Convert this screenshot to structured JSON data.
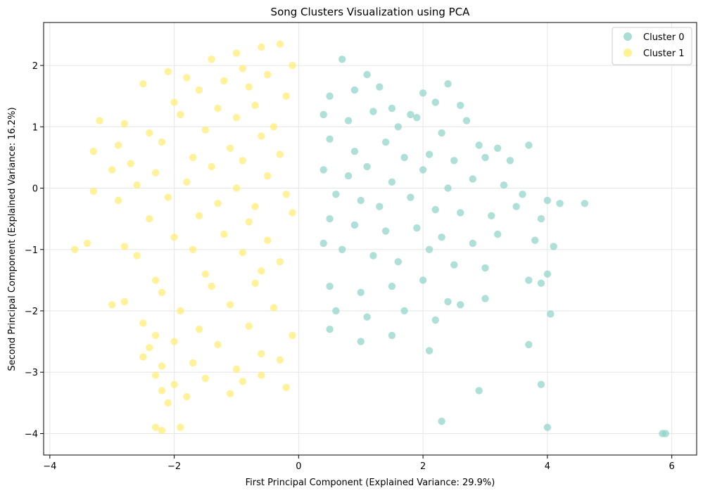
{
  "chart_data": {
    "type": "scatter",
    "title": "Song Clusters Visualization using PCA",
    "xlabel": "First Principal Component (Explained Variance: 29.9%)",
    "ylabel": "Second Principal Component (Explained Variance: 16.2%)",
    "xlim": [
      -4.1,
      6.4
    ],
    "ylim": [
      -4.35,
      2.7
    ],
    "xticks": [
      -4,
      -2,
      0,
      2,
      4,
      6
    ],
    "yticks": [
      -4,
      -3,
      -2,
      -1,
      0,
      1,
      2
    ],
    "grid": true,
    "legend_position": "top-right",
    "series": [
      {
        "name": "Cluster 0",
        "color": "#8dd3c7",
        "x": [
          0.7,
          1.1,
          1.3,
          2.2,
          2.4,
          2.6,
          0.5,
          0.9,
          1.5,
          1.8,
          2.0,
          2.7,
          0.4,
          0.8,
          1.2,
          1.6,
          1.9,
          2.3,
          2.9,
          3.2,
          0.5,
          0.9,
          1.4,
          1.7,
          2.1,
          2.5,
          3.0,
          3.4,
          3.7,
          0.4,
          0.8,
          1.1,
          1.5,
          2.0,
          2.4,
          2.8,
          3.3,
          3.6,
          4.0,
          4.2,
          4.6,
          0.6,
          1.0,
          1.3,
          1.8,
          2.2,
          2.6,
          3.1,
          3.5,
          3.9,
          0.5,
          0.9,
          1.4,
          1.9,
          2.3,
          2.8,
          3.2,
          3.8,
          4.1,
          0.4,
          0.7,
          1.2,
          1.6,
          2.1,
          2.5,
          3.0,
          3.7,
          4.0,
          0.5,
          1.0,
          1.5,
          2.0,
          2.4,
          3.0,
          3.9,
          0.6,
          1.1,
          1.7,
          2.2,
          2.6,
          3.7,
          4.05,
          0.5,
          1.0,
          1.5,
          2.1,
          2.9,
          3.9,
          2.3,
          4.0,
          5.9,
          5.85
        ],
        "y": [
          2.1,
          1.85,
          1.65,
          1.4,
          1.7,
          1.35,
          1.5,
          1.6,
          1.3,
          1.2,
          1.55,
          1.1,
          1.2,
          1.1,
          1.25,
          1.0,
          1.15,
          0.9,
          0.7,
          0.65,
          0.8,
          0.6,
          0.75,
          0.5,
          0.55,
          0.45,
          0.5,
          0.45,
          0.7,
          0.3,
          0.2,
          0.35,
          0.1,
          0.3,
          0.0,
          0.15,
          0.05,
          -0.1,
          -0.2,
          -0.25,
          -0.25,
          -0.1,
          -0.2,
          -0.3,
          -0.15,
          -0.35,
          -0.4,
          -0.45,
          -0.3,
          -0.5,
          -0.5,
          -0.6,
          -0.7,
          -0.65,
          -0.8,
          -0.9,
          -0.75,
          -0.85,
          -0.95,
          -0.9,
          -1.0,
          -1.1,
          -1.2,
          -1.0,
          -1.25,
          -1.3,
          -1.5,
          -1.4,
          -1.6,
          -1.7,
          -1.6,
          -1.5,
          -1.85,
          -1.8,
          -1.55,
          -2.0,
          -2.1,
          -2.0,
          -2.15,
          -1.9,
          -2.55,
          -2.05,
          -2.3,
          -2.5,
          -2.4,
          -2.65,
          -3.3,
          -3.2,
          -3.8,
          -3.9,
          -4.0,
          -4.0
        ]
      },
      {
        "name": "Cluster 1",
        "color": "#ffed6f",
        "x": [
          -0.3,
          -0.6,
          -1.0,
          -1.4,
          -0.1,
          -0.9,
          -2.1,
          -1.8,
          -0.5,
          -1.2,
          -2.5,
          -1.6,
          -0.8,
          -0.2,
          -2.0,
          -1.3,
          -0.7,
          -3.2,
          -2.8,
          -1.9,
          -1.0,
          -0.4,
          -2.4,
          -1.5,
          -0.6,
          -3.3,
          -2.9,
          -2.2,
          -1.1,
          -0.3,
          -2.7,
          -1.7,
          -0.9,
          -3.0,
          -2.3,
          -1.4,
          -0.5,
          -3.3,
          -2.6,
          -1.8,
          -1.0,
          -0.2,
          -2.9,
          -2.1,
          -1.3,
          -0.7,
          -3.6,
          -3.4,
          -2.4,
          -1.6,
          -0.8,
          -0.1,
          -2.8,
          -2.0,
          -1.2,
          -0.5,
          -2.6,
          -1.7,
          -0.9,
          -0.3,
          -3.0,
          -2.3,
          -1.5,
          -0.6,
          -2.8,
          -2.2,
          -1.4,
          -0.7,
          -2.5,
          -1.9,
          -1.1,
          -0.4,
          -2.3,
          -1.6,
          -0.8,
          -0.1,
          -2.4,
          -2.0,
          -1.3,
          -0.6,
          -2.5,
          -2.2,
          -1.7,
          -1.0,
          -0.3,
          -2.3,
          -2.0,
          -1.5,
          -0.9,
          -2.2,
          -2.1,
          -1.8,
          -1.1,
          -2.3,
          -2.2,
          -1.9,
          -0.6,
          -0.2
        ],
        "y": [
          2.35,
          2.3,
          2.2,
          2.1,
          2.0,
          1.95,
          1.9,
          1.8,
          1.85,
          1.75,
          1.7,
          1.6,
          1.65,
          1.5,
          1.4,
          1.3,
          1.35,
          1.1,
          1.05,
          1.2,
          1.15,
          1.0,
          0.9,
          0.95,
          0.85,
          0.6,
          0.7,
          0.75,
          0.65,
          0.55,
          0.4,
          0.5,
          0.45,
          0.3,
          0.25,
          0.35,
          0.2,
          -0.05,
          0.05,
          0.1,
          0.0,
          -0.1,
          -0.2,
          -0.15,
          -0.25,
          -0.3,
          -1.0,
          -0.9,
          -0.5,
          -0.45,
          -0.55,
          -0.4,
          -0.95,
          -0.8,
          -0.75,
          -0.85,
          -1.1,
          -1.0,
          -1.05,
          -1.2,
          -1.9,
          -1.5,
          -1.4,
          -1.35,
          -1.85,
          -1.7,
          -1.6,
          -1.55,
          -2.2,
          -2.0,
          -1.9,
          -1.95,
          -2.4,
          -2.3,
          -2.25,
          -2.4,
          -2.6,
          -2.5,
          -2.55,
          -2.7,
          -2.75,
          -2.9,
          -2.85,
          -2.95,
          -2.8,
          -3.05,
          -3.2,
          -3.1,
          -3.15,
          -3.3,
          -3.5,
          -3.4,
          -3.35,
          -3.9,
          -3.95,
          -3.9,
          -3.05,
          -3.25
        ]
      }
    ]
  }
}
